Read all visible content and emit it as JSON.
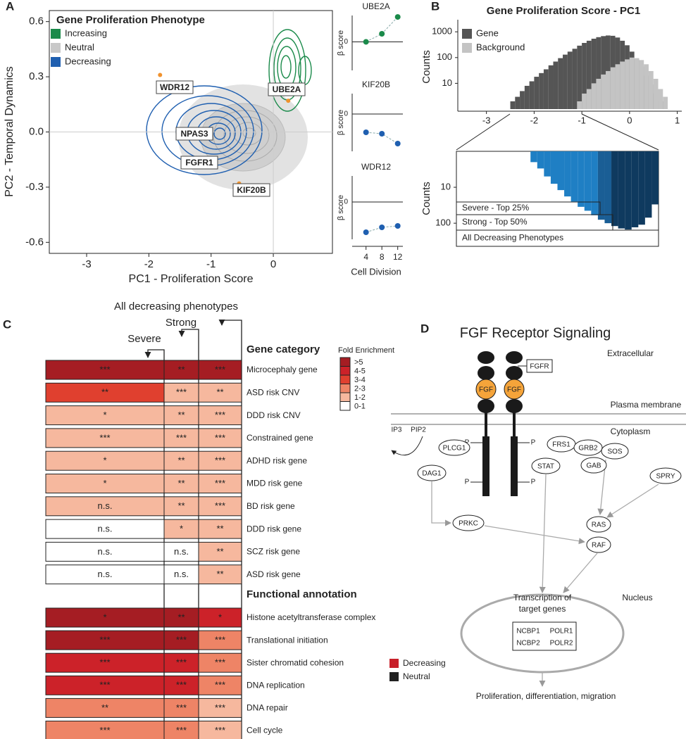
{
  "panel_a": {
    "label": "A",
    "legend_title": "Gene Proliferation Phenotype",
    "legend": [
      {
        "label": "Increasing",
        "color": "#1a8a4a"
      },
      {
        "label": "Neutral",
        "color": "#c8c8c8"
      },
      {
        "label": "Decreasing",
        "color": "#1f5fb0"
      }
    ],
    "xlabel": "PC1 - Proliferation Score",
    "ylabel": "PC2 - Temporal Dynamics",
    "xlim": [
      -3.6,
      0.95
    ],
    "xticks": [
      -3,
      -2,
      -1,
      0
    ],
    "ylim": [
      -0.66,
      0.66
    ],
    "yticks": [
      -0.6,
      -0.3,
      {
        "value": 0,
        "label": "0.0"
      },
      0.3,
      0.6
    ],
    "highlight_color": "#f0922e",
    "genes": [
      {
        "name": "WDR12",
        "x": -1.82,
        "y": 0.31
      },
      {
        "name": "UBE2A",
        "x": 0.24,
        "y": 0.17
      },
      {
        "name": "NPAS3"
      },
      {
        "name": "FGFR1"
      },
      {
        "name": "KIF20B",
        "x": -0.55,
        "y": -0.28
      }
    ]
  },
  "panel_a_beta": {
    "ylabel": "β score",
    "yticks": [
      0
    ],
    "xlabel": "Cell Division",
    "xlim": [
      0.5,
      13.3
    ],
    "x": [
      4,
      8,
      12
    ],
    "panels": [
      {
        "title": "UBE2A",
        "color": "#1a8a4a",
        "ylim": [
          -0.39,
          0.36
        ],
        "values": [
          0,
          0.11,
          0.34
        ]
      },
      {
        "title": "KIF20B",
        "color": "#1f5fb0",
        "ylim": [
          -0.53,
          0.29
        ],
        "values": [
          -0.26,
          -0.28,
          -0.42
        ]
      },
      {
        "title": "WDR12",
        "color": "#1f5fb0",
        "ylim": [
          -0.53,
          0.37
        ],
        "values": [
          -0.43,
          -0.36,
          -0.34
        ]
      }
    ]
  },
  "panel_b": {
    "label": "B",
    "title": "Gene Proliferation Score - PC1",
    "ylabel": "Counts",
    "log_y": true,
    "xlim": [
      -3.6,
      1.05
    ],
    "xticks": [
      -3,
      -2,
      -1,
      0,
      1
    ],
    "ylim": [
      1,
      2600
    ],
    "yticks": [
      10,
      100,
      1000
    ],
    "series": [
      {
        "name": "Gene",
        "color": "#555555",
        "bins": [
          -2.6,
          -2.5,
          -2.4,
          -2.3,
          -2.2,
          -2.1,
          -2.0,
          -1.9,
          -1.8,
          -1.7,
          -1.6,
          -1.5,
          -1.4,
          -1.3,
          -1.2,
          -1.1,
          -1.0,
          -0.9,
          -0.8,
          -0.7,
          -0.6,
          -0.5,
          -0.4,
          -0.3,
          -0.2,
          -0.1,
          0.0,
          0.1,
          0.2,
          0.3,
          0.4,
          0.5,
          0.6,
          0.7,
          0.8,
          0.9
        ],
        "values": [
          1,
          2,
          3,
          5,
          8,
          12,
          18,
          25,
          35,
          50,
          70,
          95,
          130,
          170,
          220,
          290,
          370,
          450,
          540,
          620,
          680,
          720,
          700,
          600,
          450,
          300,
          170,
          90,
          45,
          20,
          9,
          4,
          2,
          1,
          1
        ]
      },
      {
        "name": "Background",
        "color": "#c4c4c4",
        "bins": [
          -1.1,
          -1.0,
          -0.9,
          -0.8,
          -0.7,
          -0.6,
          -0.5,
          -0.4,
          -0.3,
          -0.2,
          -0.1,
          0.0,
          0.1,
          0.2,
          0.3,
          0.4,
          0.5,
          0.6,
          0.7,
          0.8,
          0.9
        ],
        "values": [
          2,
          4,
          6,
          10,
          15,
          22,
          30,
          42,
          55,
          70,
          85,
          100,
          95,
          80,
          55,
          30,
          15,
          6,
          3,
          1
        ]
      }
    ],
    "inset": {
      "ylabel": "Counts",
      "xlim": [
        -2.5,
        -1.0
      ],
      "ylim": [
        1,
        440
      ],
      "yticks": [
        10,
        100
      ],
      "series": [
        {
          "name": "All Decreasing Phenotypes",
          "color": "#1f7fc4",
          "bins": [
            -2.5,
            -2.45,
            -2.4,
            -2.35,
            -2.3,
            -2.25,
            -2.2,
            -2.15,
            -2.1,
            -2.05,
            -2.0,
            -1.95,
            -1.9,
            -1.85,
            -1.8,
            -1.75,
            -1.7,
            -1.65,
            -1.6,
            -1.55,
            -1.5,
            -1.45
          ],
          "values": [
            1,
            1,
            1,
            1,
            1,
            1,
            1,
            1,
            1,
            1,
            1,
            2,
            3,
            5,
            8,
            12,
            18,
            25,
            35,
            45,
            60
          ]
        },
        {
          "name": "Strong - Top 50%",
          "color": "#1a5e95",
          "bins": [
            -1.45,
            -1.4,
            -1.35
          ],
          "values": [
            80,
            100
          ]
        },
        {
          "name": "Severe - Top 25%",
          "color": "#0f3a5f",
          "bins": [
            -1.35,
            -1.3,
            -1.25,
            -1.2,
            -1.15,
            -1.1,
            -1.05,
            -1.0
          ],
          "values": [
            120,
            140,
            150,
            130,
            110,
            70,
            30
          ]
        }
      ]
    }
  },
  "panel_c": {
    "label": "C",
    "column_headers": [
      "Severe",
      "Strong",
      "All decreasing phenotypes"
    ],
    "legend_title": "Fold Enrichment",
    "legend": [
      {
        "label": ">5",
        "color": "#a51d23"
      },
      {
        "label": "4-5",
        "color": "#cc2229"
      },
      {
        "label": "3-4",
        "color": "#e0402f"
      },
      {
        "label": "2-3",
        "color": "#ee8466"
      },
      {
        "label": "1-2",
        "color": "#f6b89e"
      },
      {
        "label": "0-1",
        "color": "#ffffff"
      }
    ],
    "sections": [
      {
        "title": "Gene category",
        "rows": [
          {
            "label": "Microcephaly gene",
            "cells": [
              {
                "text": "***",
                "level": 0
              },
              {
                "text": "**",
                "level": 0
              },
              {
                "text": "***",
                "level": 0
              }
            ]
          },
          {
            "label": "ASD risk CNV",
            "cells": [
              {
                "text": "**",
                "level": 2
              },
              {
                "text": "***",
                "level": 4
              },
              {
                "text": "**",
                "level": 4
              }
            ]
          },
          {
            "label": "DDD risk CNV",
            "cells": [
              {
                "text": "*",
                "level": 4
              },
              {
                "text": "**",
                "level": 4
              },
              {
                "text": "***",
                "level": 4
              }
            ]
          },
          {
            "label": "Constrained gene",
            "cells": [
              {
                "text": "***",
                "level": 4
              },
              {
                "text": "***",
                "level": 4
              },
              {
                "text": "***",
                "level": 4
              }
            ]
          },
          {
            "label": "ADHD risk gene",
            "cells": [
              {
                "text": "*",
                "level": 4
              },
              {
                "text": "**",
                "level": 4
              },
              {
                "text": "***",
                "level": 4
              }
            ]
          },
          {
            "label": "MDD risk gene",
            "cells": [
              {
                "text": "*",
                "level": 4
              },
              {
                "text": "**",
                "level": 4
              },
              {
                "text": "***",
                "level": 4
              }
            ]
          },
          {
            "label": "BD risk gene",
            "cells": [
              {
                "text": "n.s.",
                "level": 4
              },
              {
                "text": "**",
                "level": 4
              },
              {
                "text": "***",
                "level": 4
              }
            ]
          },
          {
            "label": "DDD risk gene",
            "cells": [
              {
                "text": "n.s.",
                "level": 5
              },
              {
                "text": "*",
                "level": 4
              },
              {
                "text": "**",
                "level": 4
              }
            ]
          },
          {
            "label": "SCZ risk gene",
            "cells": [
              {
                "text": "n.s.",
                "level": 5
              },
              {
                "text": "n.s.",
                "level": 5
              },
              {
                "text": "**",
                "level": 4
              }
            ]
          },
          {
            "label": "ASD risk gene",
            "cells": [
              {
                "text": "n.s.",
                "level": 5
              },
              {
                "text": "n.s.",
                "level": 5
              },
              {
                "text": "**",
                "level": 4
              }
            ]
          }
        ]
      },
      {
        "title": "Functional annotation",
        "rows": [
          {
            "label": "Histone acetyltransferase complex",
            "cells": [
              {
                "text": "*",
                "level": 0
              },
              {
                "text": "**",
                "level": 0
              },
              {
                "text": "*",
                "level": 1
              }
            ]
          },
          {
            "label": "Translational initiation",
            "cells": [
              {
                "text": "***",
                "level": 0
              },
              {
                "text": "***",
                "level": 0
              },
              {
                "text": "***",
                "level": 3
              }
            ]
          },
          {
            "label": "Sister chromatid cohesion",
            "cells": [
              {
                "text": "***",
                "level": 1
              },
              {
                "text": "***",
                "level": 1
              },
              {
                "text": "***",
                "level": 3
              }
            ]
          },
          {
            "label": "DNA replication",
            "cells": [
              {
                "text": "***",
                "level": 1
              },
              {
                "text": "***",
                "level": 1
              },
              {
                "text": "***",
                "level": 3
              }
            ]
          },
          {
            "label": "DNA repair",
            "cells": [
              {
                "text": "**",
                "level": 3
              },
              {
                "text": "***",
                "level": 3
              },
              {
                "text": "***",
                "level": 4
              }
            ]
          },
          {
            "label": "Cell cycle",
            "cells": [
              {
                "text": "***",
                "level": 3
              },
              {
                "text": "***",
                "level": 3
              },
              {
                "text": "***",
                "level": 4
              }
            ]
          }
        ]
      }
    ]
  },
  "panel_d": {
    "label": "D",
    "title": "FGF Receptor Signaling",
    "compartments": [
      "Extracellular",
      "Plasma membrane",
      "Cytoplasm",
      "Nucleus"
    ],
    "receptor": "FGFR",
    "ligands": [
      "FGF",
      "FGF"
    ],
    "phospho": [
      "P",
      "P",
      "P",
      "P"
    ],
    "messengers": [
      "IP3",
      "PIP2"
    ],
    "nodes": [
      "PLCG1",
      "DAG1",
      "FRS1",
      "GRB2",
      "SOS",
      "GAB",
      "STAT",
      "SPRY",
      "PRKC",
      "RAS",
      "RAF"
    ],
    "transcription": [
      "Transcription of",
      "target genes"
    ],
    "targets": [
      "NCBP1",
      "POLR1",
      "NCBP2",
      "POLR2"
    ],
    "outcome": "Proliferation, differentiation, migration",
    "legend": [
      {
        "label": "Decreasing",
        "color": "#c8202a"
      },
      {
        "label": "Neutral",
        "color": "#222222"
      }
    ]
  }
}
